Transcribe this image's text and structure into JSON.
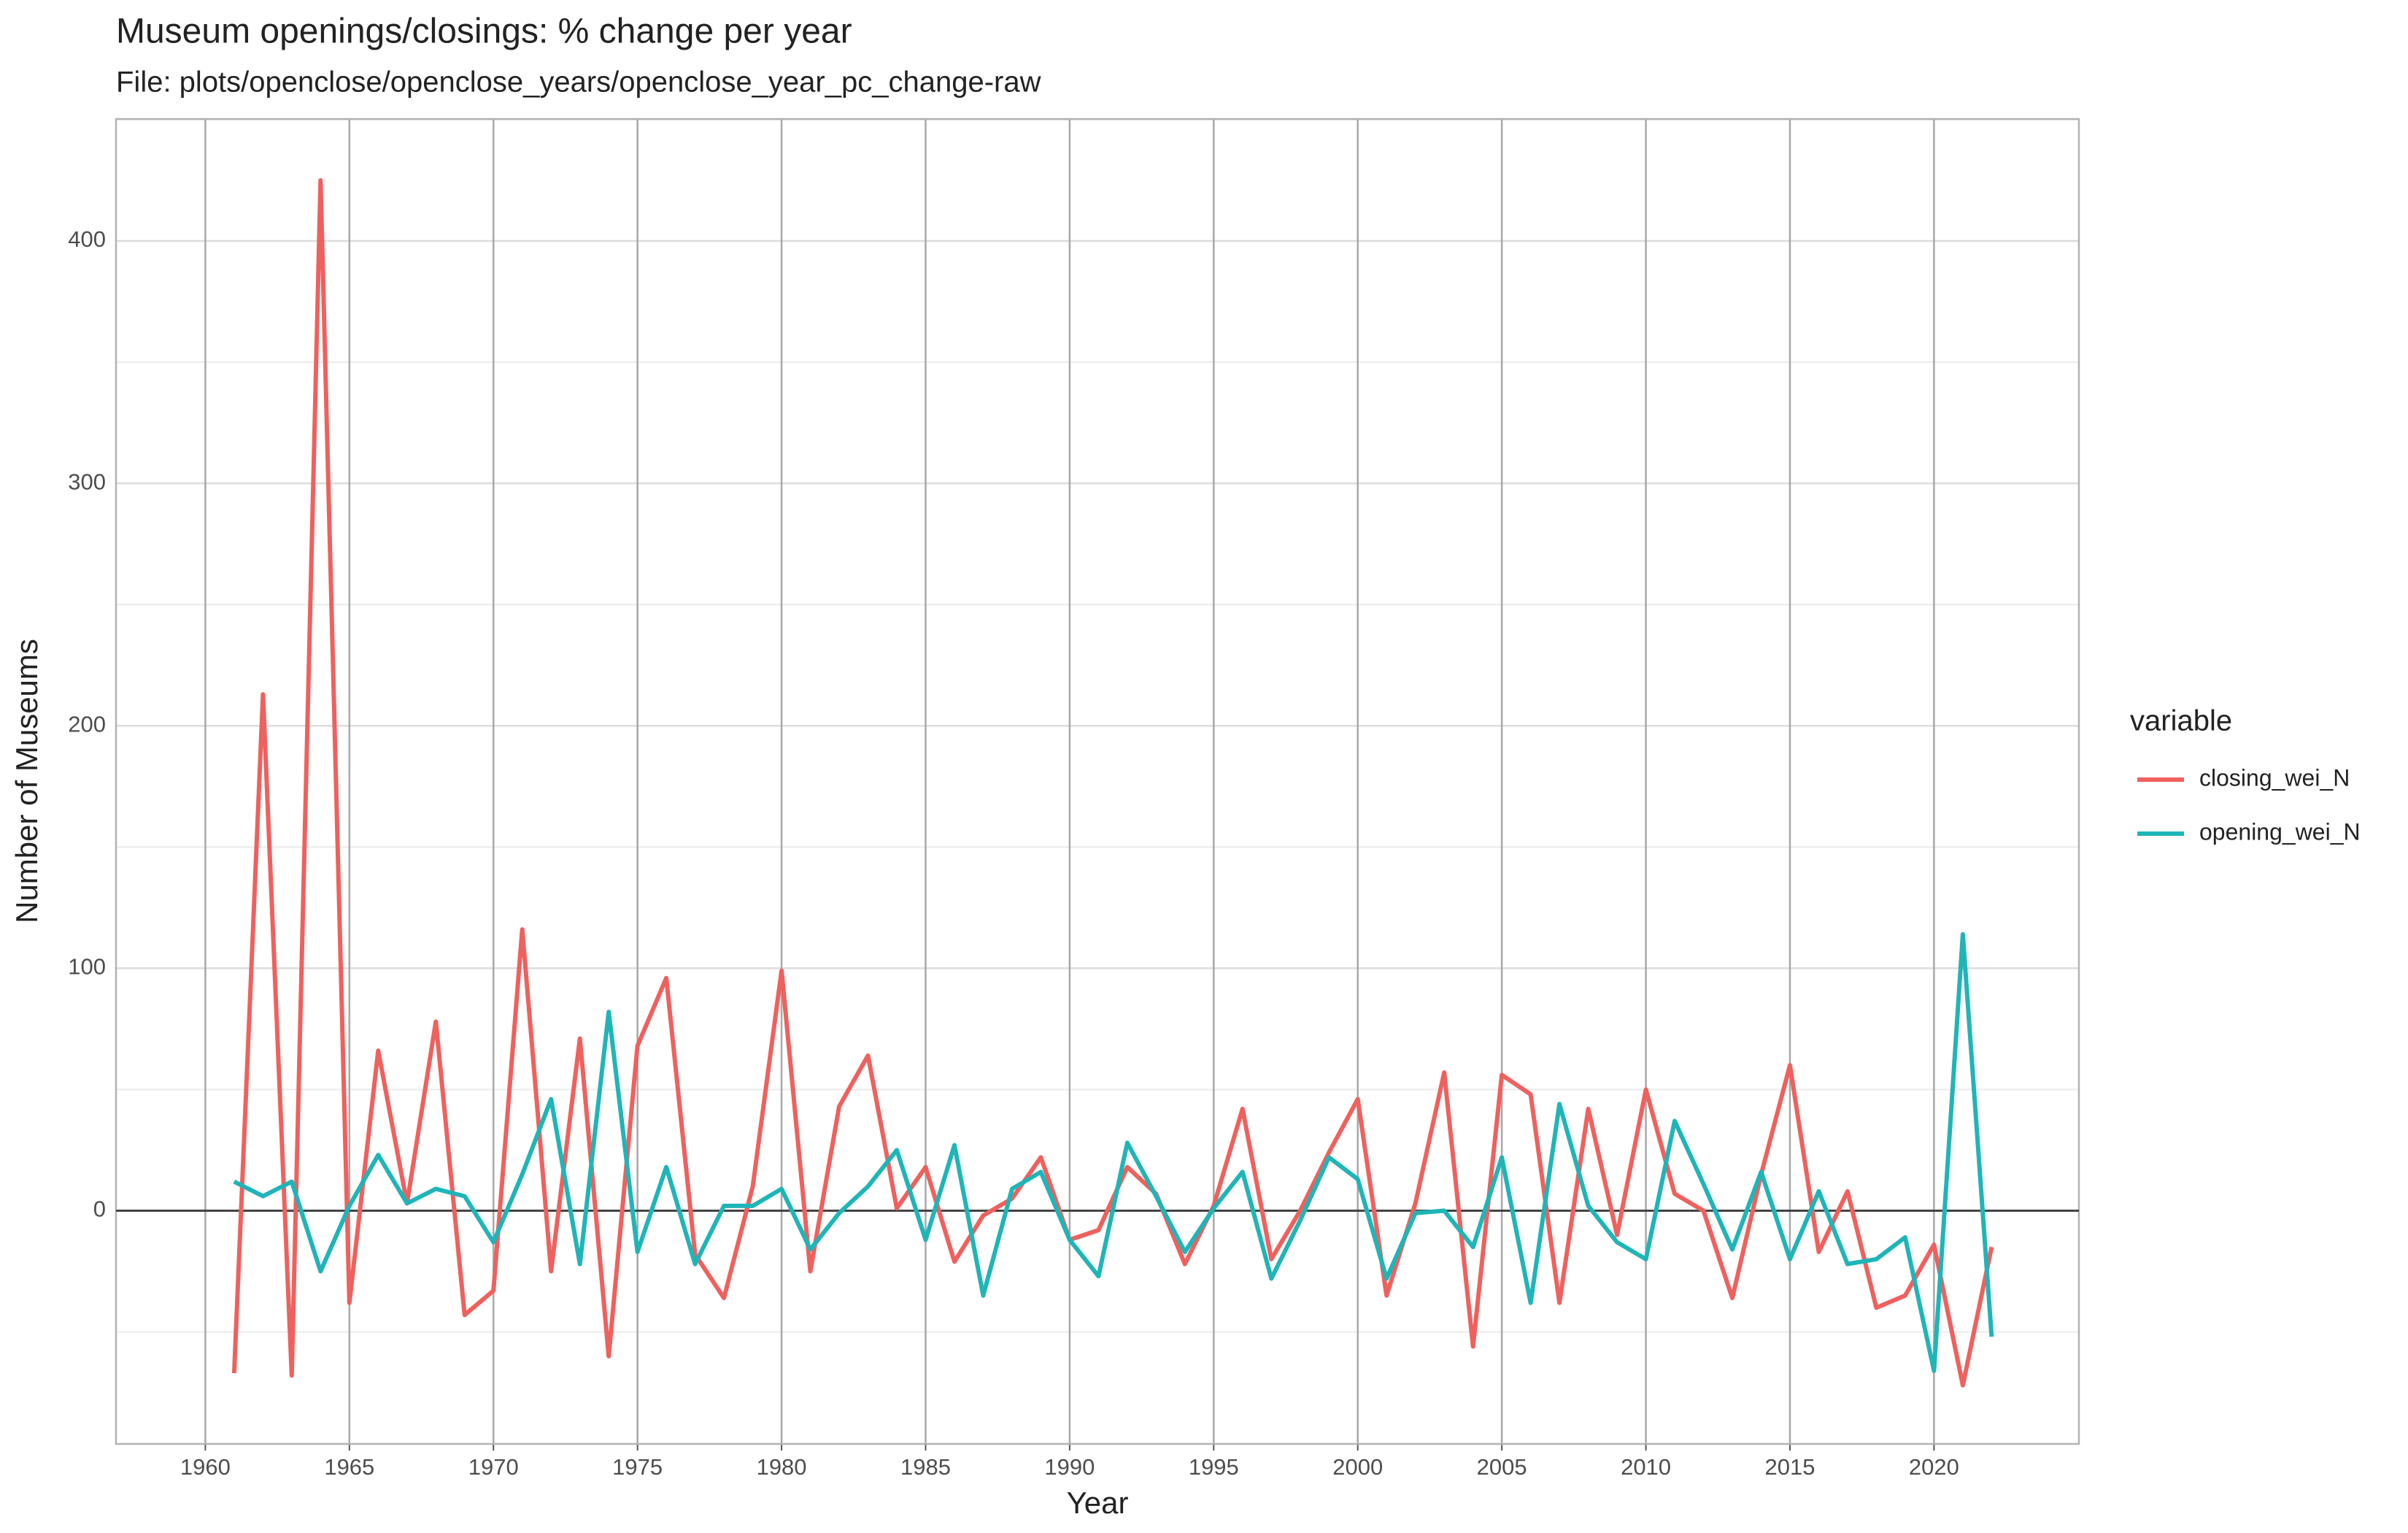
{
  "chart_data": {
    "type": "line",
    "title": "Museum openings/closings: % change per year",
    "subtitle": "File: plots/openclose/openclose_years/openclose_year_pc_change-raw",
    "x_label": "Year",
    "y_label": "Number of Museums",
    "legend_title": "variable",
    "legend_position": "right",
    "grid": true,
    "x": [
      1961,
      1962,
      1963,
      1964,
      1965,
      1966,
      1967,
      1968,
      1969,
      1970,
      1971,
      1972,
      1973,
      1974,
      1975,
      1976,
      1977,
      1978,
      1979,
      1980,
      1981,
      1982,
      1983,
      1984,
      1985,
      1986,
      1987,
      1988,
      1989,
      1990,
      1991,
      1992,
      1993,
      1994,
      1995,
      1996,
      1997,
      1998,
      1999,
      2000,
      2001,
      2002,
      2003,
      2004,
      2005,
      2006,
      2007,
      2008,
      2009,
      2010,
      2011,
      2012,
      2013,
      2014,
      2015,
      2016,
      2017,
      2018,
      2019,
      2020,
      2021,
      2022
    ],
    "series": [
      {
        "name": "closing_wei_N",
        "color": "#f0605d",
        "values": [
          -67,
          213,
          -68,
          425,
          -38,
          66,
          3,
          78,
          -43,
          -33,
          116,
          -25,
          71,
          -60,
          68,
          96,
          -18,
          -36,
          10,
          99,
          -25,
          43,
          64,
          1,
          18,
          -21,
          -2,
          5,
          22,
          -12,
          -8,
          18,
          7,
          -22,
          2,
          42,
          -20,
          0,
          24,
          46,
          -35,
          3,
          57,
          -56,
          56,
          48,
          -38,
          42,
          -10,
          50,
          7,
          0,
          -36,
          15,
          60,
          -17,
          8,
          -40,
          -35,
          -14,
          -72,
          -15
        ]
      },
      {
        "name": "opening_wei_N",
        "color": "#1fb5b8",
        "values": [
          12,
          6,
          12,
          -25,
          2,
          23,
          3,
          9,
          6,
          -13,
          15,
          46,
          -22,
          82,
          -17,
          18,
          -22,
          2,
          2,
          9,
          -16,
          -1,
          10,
          25,
          -12,
          27,
          -35,
          9,
          16,
          -12,
          -27,
          28,
          6,
          -17,
          1,
          16,
          -28,
          -4,
          22,
          13,
          -28,
          -1,
          0,
          -15,
          22,
          -38,
          44,
          2,
          -13,
          -20,
          37,
          11,
          -16,
          16,
          -20,
          8,
          -22,
          -20,
          -11,
          -66,
          114,
          -52
        ]
      }
    ],
    "xlim": [
      1956.9,
      2025.03
    ],
    "xticks": [
      1960,
      1965,
      1970,
      1975,
      1980,
      1985,
      1990,
      1995,
      2000,
      2005,
      2010,
      2015,
      2020
    ],
    "ylim": [
      -96.2,
      450.3
    ],
    "yticks": [
      0,
      100,
      200,
      300,
      400
    ]
  }
}
